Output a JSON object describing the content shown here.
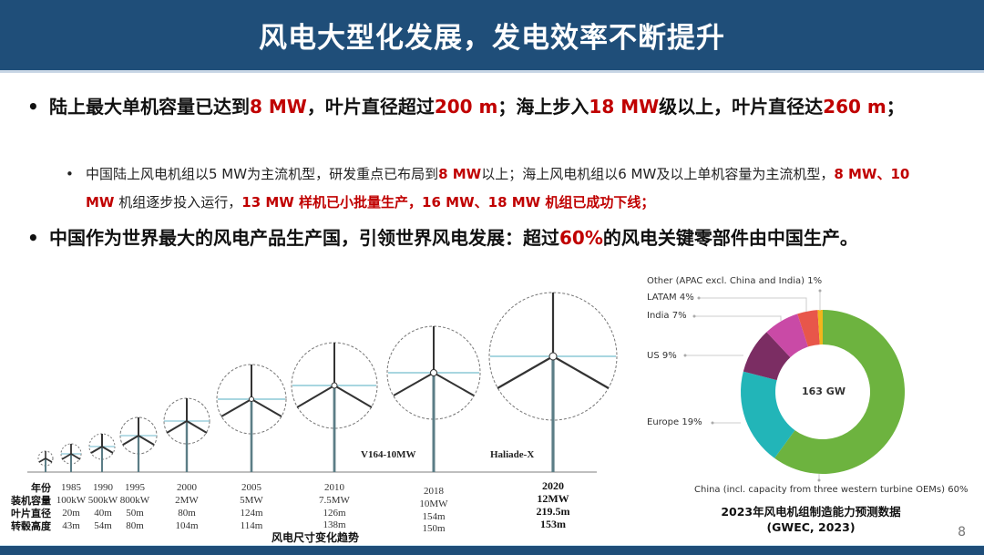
{
  "header": {
    "title": "风电大型化发展，发电效率不断提升"
  },
  "bullets": {
    "b1": {
      "parts": [
        "陆上最大单机容量已达到",
        "8 MW",
        "，叶片直径超过",
        "200 m",
        "；海上步入",
        "18 MW",
        "级以上，叶片直径达",
        "260 m",
        "；"
      ]
    },
    "b2": {
      "parts": [
        "中国陆上风电机组以5 MW为主流机型，研发重点已布局到",
        "8 MW",
        "以上；海上风电机组以6 MW及以上单机容量为主流机型，",
        "8 MW、10 MW",
        " 机组逐步投入运行，",
        "13 MW 样机已小批量生产，16 MW、18 MW 机组已成功下线；"
      ]
    },
    "b3": {
      "parts": [
        "中国作为世界最大的风电产品生产国，引领世界风电发展：超过",
        "60%",
        "的风电关键零部件由中国生产。"
      ]
    },
    "bullet_char": "•"
  },
  "turbine_figure": {
    "row_labels": [
      "年份",
      "装机容量",
      "叶片直径",
      "转毂高度"
    ],
    "columns": [
      {
        "year": "1985",
        "capacity": "100kW",
        "diameter": "20m",
        "hub_height": "43m"
      },
      {
        "year": "1990",
        "capacity": "500kW",
        "diameter": "40m",
        "hub_height": "54m"
      },
      {
        "year": "1995",
        "capacity": "800kW",
        "diameter": "50m",
        "hub_height": "80m"
      },
      {
        "year": "2000",
        "capacity": "2MW",
        "diameter": "80m",
        "hub_height": "104m"
      },
      {
        "year": "2005",
        "capacity": "5MW",
        "diameter": "124m",
        "hub_height": "114m"
      },
      {
        "year": "2010",
        "capacity": "7.5MW",
        "diameter": "126m",
        "hub_height": "138m"
      },
      {
        "year": "2018",
        "capacity": "10MW",
        "diameter": "154m",
        "hub_height": "150m"
      },
      {
        "year": "2020",
        "capacity": "12MW",
        "diameter": "219.5m",
        "hub_height": "153m"
      }
    ],
    "model_labels": [
      "V164-10MW",
      "Haliade-X"
    ],
    "caption": "风电尺寸变化趋势"
  },
  "chart_data": {
    "type": "pie",
    "subtype": "donut",
    "title": "2023年风电机组制造能力预测数据",
    "subtitle": "(GWEC, 2023)",
    "center_label": "163 GW",
    "categories": [
      "China (incl. capacity from three western turbine OEMs)",
      "Europe",
      "US",
      "India",
      "LATAM",
      "Other (APAC excl. China and India)"
    ],
    "values": [
      60,
      19,
      9,
      7,
      4,
      1
    ],
    "colors": [
      "#6db33f",
      "#22b5b8",
      "#7b2d63",
      "#c94aa6",
      "#e8564a",
      "#f2b51c"
    ],
    "labels": [
      "China (incl. capacity from three western turbine OEMs) 60%",
      "Europe 19%",
      "US 9%",
      "India 7%",
      "LATAM 4%",
      "Other (APAC excl. China and India) 1%"
    ]
  },
  "page_number": "8"
}
